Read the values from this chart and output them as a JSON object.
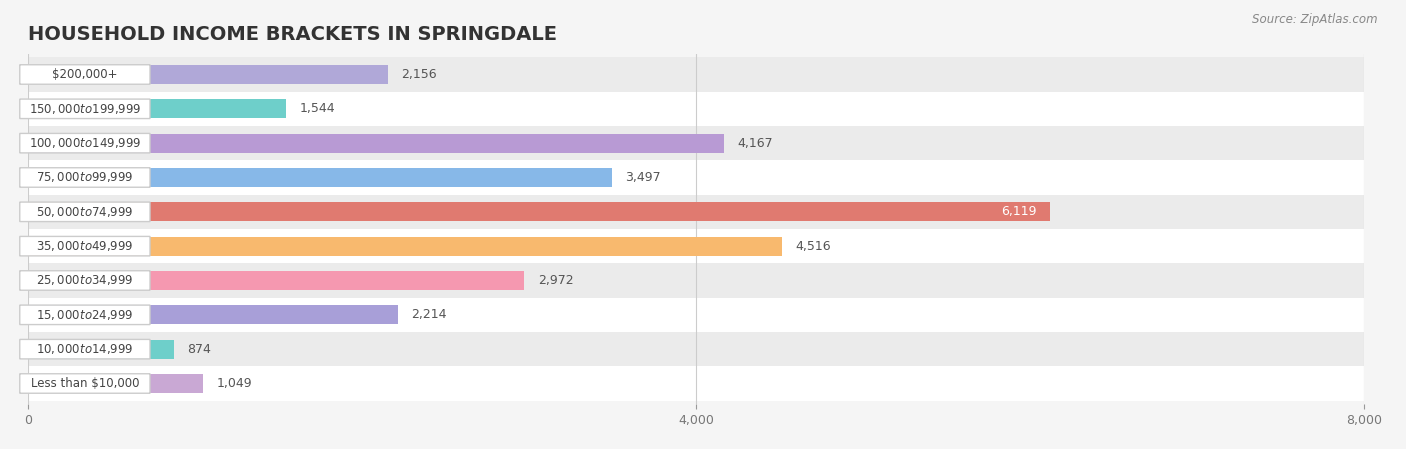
{
  "title": "HOUSEHOLD INCOME BRACKETS IN SPRINGDALE",
  "source": "Source: ZipAtlas.com",
  "categories": [
    "Less than $10,000",
    "$10,000 to $14,999",
    "$15,000 to $24,999",
    "$25,000 to $34,999",
    "$35,000 to $49,999",
    "$50,000 to $74,999",
    "$75,000 to $99,999",
    "$100,000 to $149,999",
    "$150,000 to $199,999",
    "$200,000+"
  ],
  "values": [
    1049,
    874,
    2214,
    2972,
    4516,
    6119,
    3497,
    4167,
    1544,
    2156
  ],
  "bar_colors": [
    "#c9a8d4",
    "#6ecfca",
    "#a89fd8",
    "#f598b0",
    "#f8b96e",
    "#e07a70",
    "#87b8e8",
    "#b89ad4",
    "#6ecfca",
    "#b0a8d8"
  ],
  "bar_label_colors": [
    "#555555",
    "#555555",
    "#555555",
    "#555555",
    "#555555",
    "#ffffff",
    "#555555",
    "#555555",
    "#555555",
    "#555555"
  ],
  "xlim": [
    0,
    8000
  ],
  "xticks": [
    0,
    4000,
    8000
  ],
  "background_color": "#f5f5f5",
  "row_bg_colors": [
    "#ffffff",
    "#f0f0f0"
  ],
  "title_fontsize": 14,
  "label_fontsize": 10,
  "value_fontsize": 9.5
}
